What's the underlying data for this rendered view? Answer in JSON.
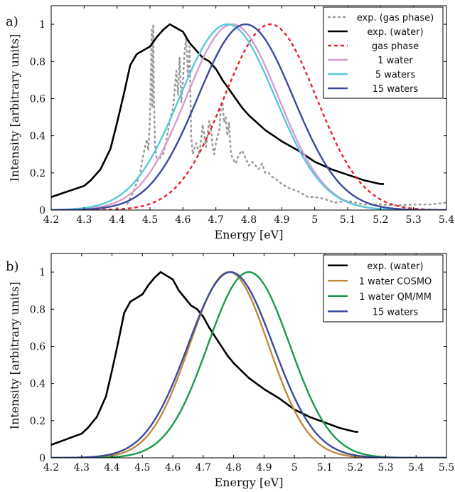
{
  "chart_data": [
    {
      "type": "line",
      "panel_label": "a)",
      "xlabel": "Energy [eV]",
      "ylabel": "Intensity [arbitrary units]",
      "xlim": [
        4.2,
        5.4
      ],
      "ylim": [
        0,
        1.1
      ],
      "x_ticks": [
        "4.2",
        "4.3",
        "4.4",
        "4.5",
        "4.6",
        "4.7",
        "4.8",
        "4.9",
        "5",
        "5.1",
        "5.2",
        "5.3",
        "5.4"
      ],
      "y_ticks": [
        "0",
        "0.2",
        "0.4",
        "0.6",
        "0.8",
        "1"
      ],
      "grid": false,
      "legend_position": "top-right",
      "series": [
        {
          "name": "exp. (gas phase)",
          "color": "#999999",
          "style": "dashed",
          "x": [
            4.43,
            4.45,
            4.47,
            4.48,
            4.49,
            4.495,
            4.5,
            4.505,
            4.507,
            4.51,
            4.512,
            4.515,
            4.52,
            4.53,
            4.54,
            4.55,
            4.56,
            4.57,
            4.58,
            4.585,
            4.59,
            4.595,
            4.6,
            4.605,
            4.61,
            4.615,
            4.62,
            4.625,
            4.63,
            4.64,
            4.65,
            4.66,
            4.67,
            4.68,
            4.685,
            4.69,
            4.695,
            4.7,
            4.705,
            4.71,
            4.715,
            4.72,
            4.725,
            4.73,
            4.735,
            4.74,
            4.745,
            4.75,
            4.76,
            4.77,
            4.78,
            4.79,
            4.8,
            4.81,
            4.82,
            4.83,
            4.84,
            4.85,
            4.86,
            4.87,
            4.88,
            4.9,
            4.92,
            4.95,
            4.98,
            5.0,
            5.03,
            5.06,
            5.1,
            5.15,
            5.2,
            5.25,
            5.3,
            5.35,
            5.4
          ],
          "y": [
            0.03,
            0.1,
            0.2,
            0.3,
            0.38,
            0.32,
            0.5,
            0.97,
            0.55,
            1.0,
            0.6,
            0.35,
            0.28,
            0.28,
            0.3,
            0.38,
            0.48,
            0.55,
            0.75,
            0.62,
            0.82,
            0.58,
            0.7,
            0.85,
            0.93,
            0.72,
            0.88,
            0.4,
            0.3,
            0.36,
            0.3,
            0.46,
            0.34,
            0.48,
            0.44,
            0.34,
            0.3,
            0.36,
            0.4,
            0.42,
            0.55,
            0.58,
            0.47,
            0.5,
            0.4,
            0.47,
            0.32,
            0.28,
            0.25,
            0.3,
            0.32,
            0.28,
            0.24,
            0.26,
            0.24,
            0.22,
            0.25,
            0.2,
            0.2,
            0.18,
            0.17,
            0.14,
            0.12,
            0.1,
            0.07,
            0.07,
            0.06,
            0.04,
            0.05,
            0.03,
            0.03,
            0.025,
            0.03,
            0.03,
            0.04
          ]
        },
        {
          "name": "exp. (water)",
          "color": "#000000",
          "style": "solid",
          "x": [
            4.2,
            4.25,
            4.3,
            4.32,
            4.35,
            4.38,
            4.4,
            4.42,
            4.44,
            4.46,
            4.48,
            4.5,
            4.52,
            4.54,
            4.56,
            4.58,
            4.6,
            4.62,
            4.64,
            4.66,
            4.68,
            4.7,
            4.72,
            4.74,
            4.76,
            4.78,
            4.8,
            4.85,
            4.9,
            4.95,
            5.0,
            5.05,
            5.1,
            5.15,
            5.2,
            5.21
          ],
          "y": [
            0.07,
            0.1,
            0.13,
            0.16,
            0.22,
            0.33,
            0.47,
            0.62,
            0.78,
            0.84,
            0.86,
            0.88,
            0.93,
            0.97,
            1.0,
            0.98,
            0.96,
            0.9,
            0.86,
            0.82,
            0.8,
            0.76,
            0.7,
            0.65,
            0.6,
            0.55,
            0.51,
            0.43,
            0.37,
            0.32,
            0.26,
            0.22,
            0.19,
            0.16,
            0.14,
            0.14
          ]
        },
        {
          "name": "gas phase",
          "color": "#e8202a",
          "style": "dashed",
          "peak": 4.865,
          "width": 0.14,
          "xlim": [
            4.2,
            5.4
          ]
        },
        {
          "name": "1 water",
          "color": "#d89cd0",
          "style": "solid",
          "peak": 4.75,
          "width": 0.14,
          "xlim": [
            4.2,
            5.4
          ]
        },
        {
          "name": "5 waters",
          "color": "#58c8dc",
          "style": "solid",
          "peak": 4.735,
          "width": 0.145,
          "xlim": [
            4.2,
            5.4
          ]
        },
        {
          "name": "15 waters",
          "color": "#3a4ba0",
          "style": "solid",
          "peak": 4.79,
          "width": 0.145,
          "xlim": [
            4.2,
            5.4
          ]
        }
      ]
    },
    {
      "type": "line",
      "panel_label": "b)",
      "xlabel": "Energy [eV]",
      "ylabel": "Intensity [arbitrary units]",
      "xlim": [
        4.2,
        5.5
      ],
      "ylim": [
        0,
        1.1
      ],
      "x_ticks": [
        "4.2",
        "4.3",
        "4.4",
        "4.5",
        "4.6",
        "4.7",
        "4.8",
        "4.9",
        "5",
        "5.1",
        "5.2",
        "5.3",
        "5.4",
        "5.5"
      ],
      "y_ticks": [
        "0",
        "0.2",
        "0.4",
        "0.6",
        "0.8",
        "1"
      ],
      "grid": false,
      "legend_position": "top-right",
      "series": [
        {
          "name": "exp. (water)",
          "color": "#000000",
          "style": "solid",
          "x": [
            4.2,
            4.25,
            4.3,
            4.32,
            4.35,
            4.38,
            4.4,
            4.42,
            4.44,
            4.46,
            4.48,
            4.5,
            4.52,
            4.54,
            4.56,
            4.58,
            4.6,
            4.62,
            4.64,
            4.66,
            4.68,
            4.7,
            4.72,
            4.74,
            4.76,
            4.78,
            4.8,
            4.85,
            4.9,
            4.95,
            5.0,
            5.05,
            5.1,
            5.15,
            5.2,
            5.21
          ],
          "y": [
            0.07,
            0.1,
            0.13,
            0.16,
            0.22,
            0.33,
            0.47,
            0.62,
            0.78,
            0.84,
            0.86,
            0.88,
            0.93,
            0.97,
            1.0,
            0.98,
            0.96,
            0.9,
            0.86,
            0.82,
            0.8,
            0.76,
            0.7,
            0.65,
            0.6,
            0.55,
            0.51,
            0.43,
            0.37,
            0.32,
            0.26,
            0.22,
            0.19,
            0.16,
            0.14,
            0.14
          ]
        },
        {
          "name": "1 water COSMO",
          "color": "#c08a3e",
          "style": "solid",
          "peak": 4.785,
          "width": 0.13,
          "xlim": [
            4.2,
            5.5
          ]
        },
        {
          "name": "1 water QM/MM",
          "color": "#1a9a4a",
          "style": "solid",
          "peak": 4.85,
          "width": 0.135,
          "xlim": [
            4.2,
            5.5
          ]
        },
        {
          "name": "15 waters",
          "color": "#3a4ba0",
          "style": "solid",
          "peak": 4.79,
          "width": 0.14,
          "xlim": [
            4.2,
            5.5
          ]
        }
      ]
    }
  ]
}
